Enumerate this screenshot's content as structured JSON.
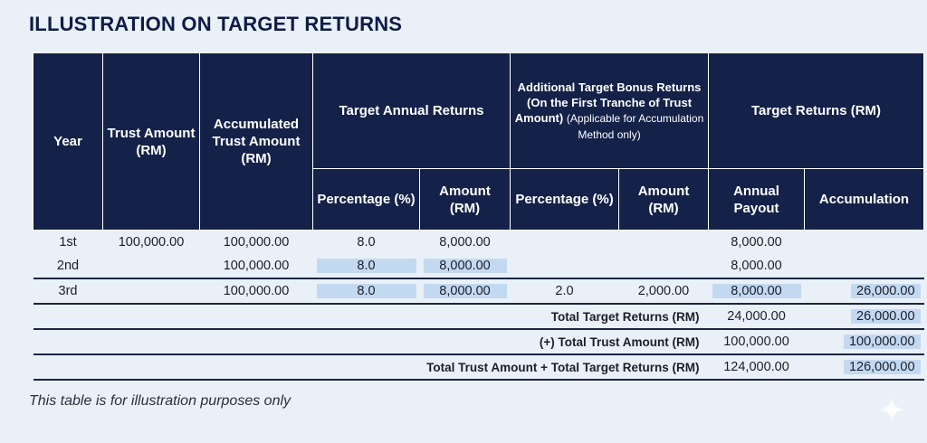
{
  "title": "ILLUSTRATION ON TARGET RETURNS",
  "headers": {
    "year": "Year",
    "trust_amount": "Trust Amount (RM)",
    "accumulated": "Accumulated Trust Amount (RM)",
    "target_annual": "Target Annual Returns",
    "bonus_main": "Additional Target Bonus Returns (On the First Tranche of Trust Amount)",
    "bonus_note": "(Applicable for Accumulation Method only)",
    "target_returns": "Target Returns (RM)",
    "pct": "Percentage (%)",
    "amount": "Amount (RM)",
    "pct2": "Percentage (%)",
    "amount2": "Amount (RM)",
    "annual_payout": "Annual Payout",
    "accumulation": "Accumulation"
  },
  "rows": [
    {
      "year": "1st",
      "trust": "100,000.00",
      "accum": "100,000.00",
      "pct": "8.0",
      "amt": "8,000.00",
      "bpct": "",
      "bamt": "",
      "payout": "8,000.00",
      "accumulation": ""
    },
    {
      "year": "2nd",
      "trust": "",
      "accum": "100,000.00",
      "pct": "8.0",
      "amt": "8,000.00",
      "bpct": "",
      "bamt": "",
      "payout": "8,000.00",
      "accumulation": ""
    },
    {
      "year": "3rd",
      "trust": "",
      "accum": "100,000.00",
      "pct": "8.0",
      "amt": "8,000.00",
      "bpct": "2.0",
      "bamt": "2,000.00",
      "payout": "8,000.00",
      "accumulation": "26,000.00"
    }
  ],
  "totals": [
    {
      "label": "Total Target Returns (RM)",
      "payout": "24,000.00",
      "accumulation": "26,000.00"
    },
    {
      "label": "(+) Total Trust Amount (RM)",
      "payout": "100,000.00",
      "accumulation": "100,000.00"
    },
    {
      "label": "Total Trust Amount + Total Target Returns (RM)",
      "payout": "124,000.00",
      "accumulation": "126,000.00"
    }
  ],
  "note": "This table is for illustration purposes only",
  "colors": {
    "header_bg": "#142249",
    "highlight": "#c3d9f1",
    "page_bg": "#e9f0f8"
  },
  "icons": {
    "corner": "sparkle-icon"
  }
}
